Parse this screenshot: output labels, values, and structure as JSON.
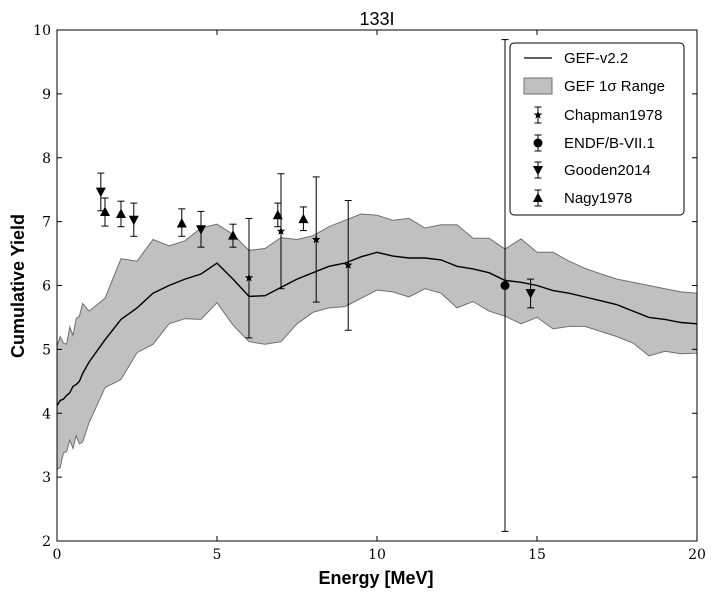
{
  "chart_data": {
    "type": "line",
    "title": "133I",
    "xlabel": "Energy [MeV]",
    "ylabel": "Cumulative Yield",
    "xlim": [
      0,
      20
    ],
    "ylim": [
      2,
      10
    ],
    "xticks": [
      "0",
      "5",
      "10",
      "15",
      "20"
    ],
    "yticks": [
      "2",
      "3",
      "4",
      "5",
      "6",
      "7",
      "8",
      "9",
      "10"
    ],
    "grid": false,
    "legend_position": "top-right",
    "legend": {
      "gef_line": "GEF-v2.2",
      "gef_band": "GEF 1σ Range",
      "chapman": "Chapman1978",
      "endf": "ENDF/B-VII.1",
      "gooden": "Gooden2014",
      "nagy": "Nagy1978"
    },
    "colors": {
      "line": "#000000",
      "band_fill": "#c0c0c0",
      "band_edge": "#707070",
      "markers": "#000000"
    },
    "gef_line": {
      "x": [
        0,
        0.1,
        0.2,
        0.3,
        0.4,
        0.5,
        0.6,
        0.7,
        0.8,
        1.0,
        1.5,
        2.0,
        2.5,
        3.0,
        3.5,
        4.0,
        4.5,
        5.0,
        5.5,
        6.0,
        6.5,
        7.0,
        7.5,
        8.0,
        8.5,
        9.0,
        9.5,
        10.0,
        10.5,
        11.0,
        11.5,
        12.0,
        12.5,
        13.0,
        13.5,
        14.0,
        14.5,
        15.0,
        15.5,
        16.0,
        16.5,
        17.0,
        17.5,
        18.0,
        18.5,
        19.0,
        19.5,
        20.0
      ],
      "y": [
        4.12,
        4.2,
        4.22,
        4.28,
        4.32,
        4.42,
        4.45,
        4.5,
        4.62,
        4.8,
        5.15,
        5.47,
        5.65,
        5.88,
        6.0,
        6.1,
        6.18,
        6.35,
        6.1,
        5.83,
        5.84,
        5.97,
        6.1,
        6.2,
        6.3,
        6.35,
        6.45,
        6.52,
        6.46,
        6.43,
        6.43,
        6.4,
        6.3,
        6.26,
        6.2,
        6.08,
        6.05,
        6.0,
        5.92,
        5.88,
        5.82,
        5.76,
        5.7,
        5.6,
        5.5,
        5.47,
        5.42,
        5.4
      ]
    },
    "gef_band": {
      "x": [
        0,
        0.1,
        0.2,
        0.3,
        0.4,
        0.5,
        0.6,
        0.7,
        0.8,
        1.0,
        1.5,
        2.0,
        2.5,
        3.0,
        3.5,
        4.0,
        4.5,
        5.0,
        5.5,
        6.0,
        6.5,
        7.0,
        7.5,
        8.0,
        8.5,
        9.0,
        9.5,
        10.0,
        10.5,
        11.0,
        11.5,
        12.0,
        12.5,
        13.0,
        13.5,
        14.0,
        14.5,
        15.0,
        15.5,
        16.0,
        16.5,
        17.0,
        17.5,
        18.0,
        18.5,
        19.0,
        19.5,
        20.0
      ],
      "lower": [
        3.12,
        3.15,
        3.38,
        3.4,
        3.58,
        3.45,
        3.65,
        3.52,
        3.55,
        3.85,
        4.4,
        4.53,
        4.95,
        5.08,
        5.4,
        5.48,
        5.47,
        5.73,
        5.38,
        5.12,
        5.08,
        5.12,
        5.4,
        5.58,
        5.65,
        5.67,
        5.8,
        5.93,
        5.9,
        5.82,
        5.95,
        5.88,
        5.65,
        5.75,
        5.6,
        5.52,
        5.4,
        5.5,
        5.32,
        5.36,
        5.36,
        5.28,
        5.2,
        5.1,
        4.9,
        4.97,
        4.93,
        4.94
      ],
      "upper": [
        5.05,
        5.2,
        5.1,
        5.08,
        5.35,
        5.22,
        5.48,
        5.52,
        5.72,
        5.6,
        5.8,
        6.42,
        6.38,
        6.72,
        6.62,
        6.7,
        6.9,
        6.96,
        6.8,
        6.55,
        6.58,
        6.75,
        6.72,
        6.78,
        6.92,
        7.02,
        7.12,
        7.1,
        7.02,
        7.05,
        6.9,
        6.95,
        6.95,
        6.74,
        6.74,
        6.57,
        6.73,
        6.52,
        6.52,
        6.38,
        6.27,
        6.18,
        6.1,
        6.05,
        6.0,
        5.95,
        5.9,
        5.88
      ]
    },
    "series": [
      {
        "name": "Chapman1978",
        "marker": "star",
        "points": [
          {
            "x": 6.0,
            "y": 6.12,
            "lo": 5.18,
            "hi": 7.05
          },
          {
            "x": 7.0,
            "y": 6.85,
            "lo": 5.95,
            "hi": 7.75
          },
          {
            "x": 8.1,
            "y": 6.72,
            "lo": 5.74,
            "hi": 7.7
          },
          {
            "x": 9.1,
            "y": 6.32,
            "lo": 5.3,
            "hi": 7.33
          }
        ]
      },
      {
        "name": "ENDF/B-VII.1",
        "marker": "circle",
        "points": [
          {
            "x": 14.0,
            "y": 6.0,
            "lo": 2.15,
            "hi": 9.85
          }
        ]
      },
      {
        "name": "Gooden2014",
        "marker": "triangle-down",
        "points": [
          {
            "x": 1.37,
            "y": 7.47,
            "lo": 7.17,
            "hi": 7.76
          },
          {
            "x": 2.4,
            "y": 7.03,
            "lo": 6.77,
            "hi": 7.29
          },
          {
            "x": 4.5,
            "y": 6.88,
            "lo": 6.6,
            "hi": 7.16
          },
          {
            "x": 14.8,
            "y": 5.88,
            "lo": 5.65,
            "hi": 6.1
          }
        ]
      },
      {
        "name": "Nagy1978",
        "marker": "triangle-up",
        "points": [
          {
            "x": 1.5,
            "y": 7.15,
            "lo": 6.93,
            "hi": 7.37
          },
          {
            "x": 2.0,
            "y": 7.12,
            "lo": 6.92,
            "hi": 7.32
          },
          {
            "x": 3.9,
            "y": 6.97,
            "lo": 6.77,
            "hi": 7.2
          },
          {
            "x": 5.5,
            "y": 6.78,
            "lo": 6.6,
            "hi": 6.96
          },
          {
            "x": 6.9,
            "y": 7.1,
            "lo": 6.92,
            "hi": 7.29
          },
          {
            "x": 7.7,
            "y": 7.04,
            "lo": 6.86,
            "hi": 7.23
          }
        ]
      }
    ]
  }
}
